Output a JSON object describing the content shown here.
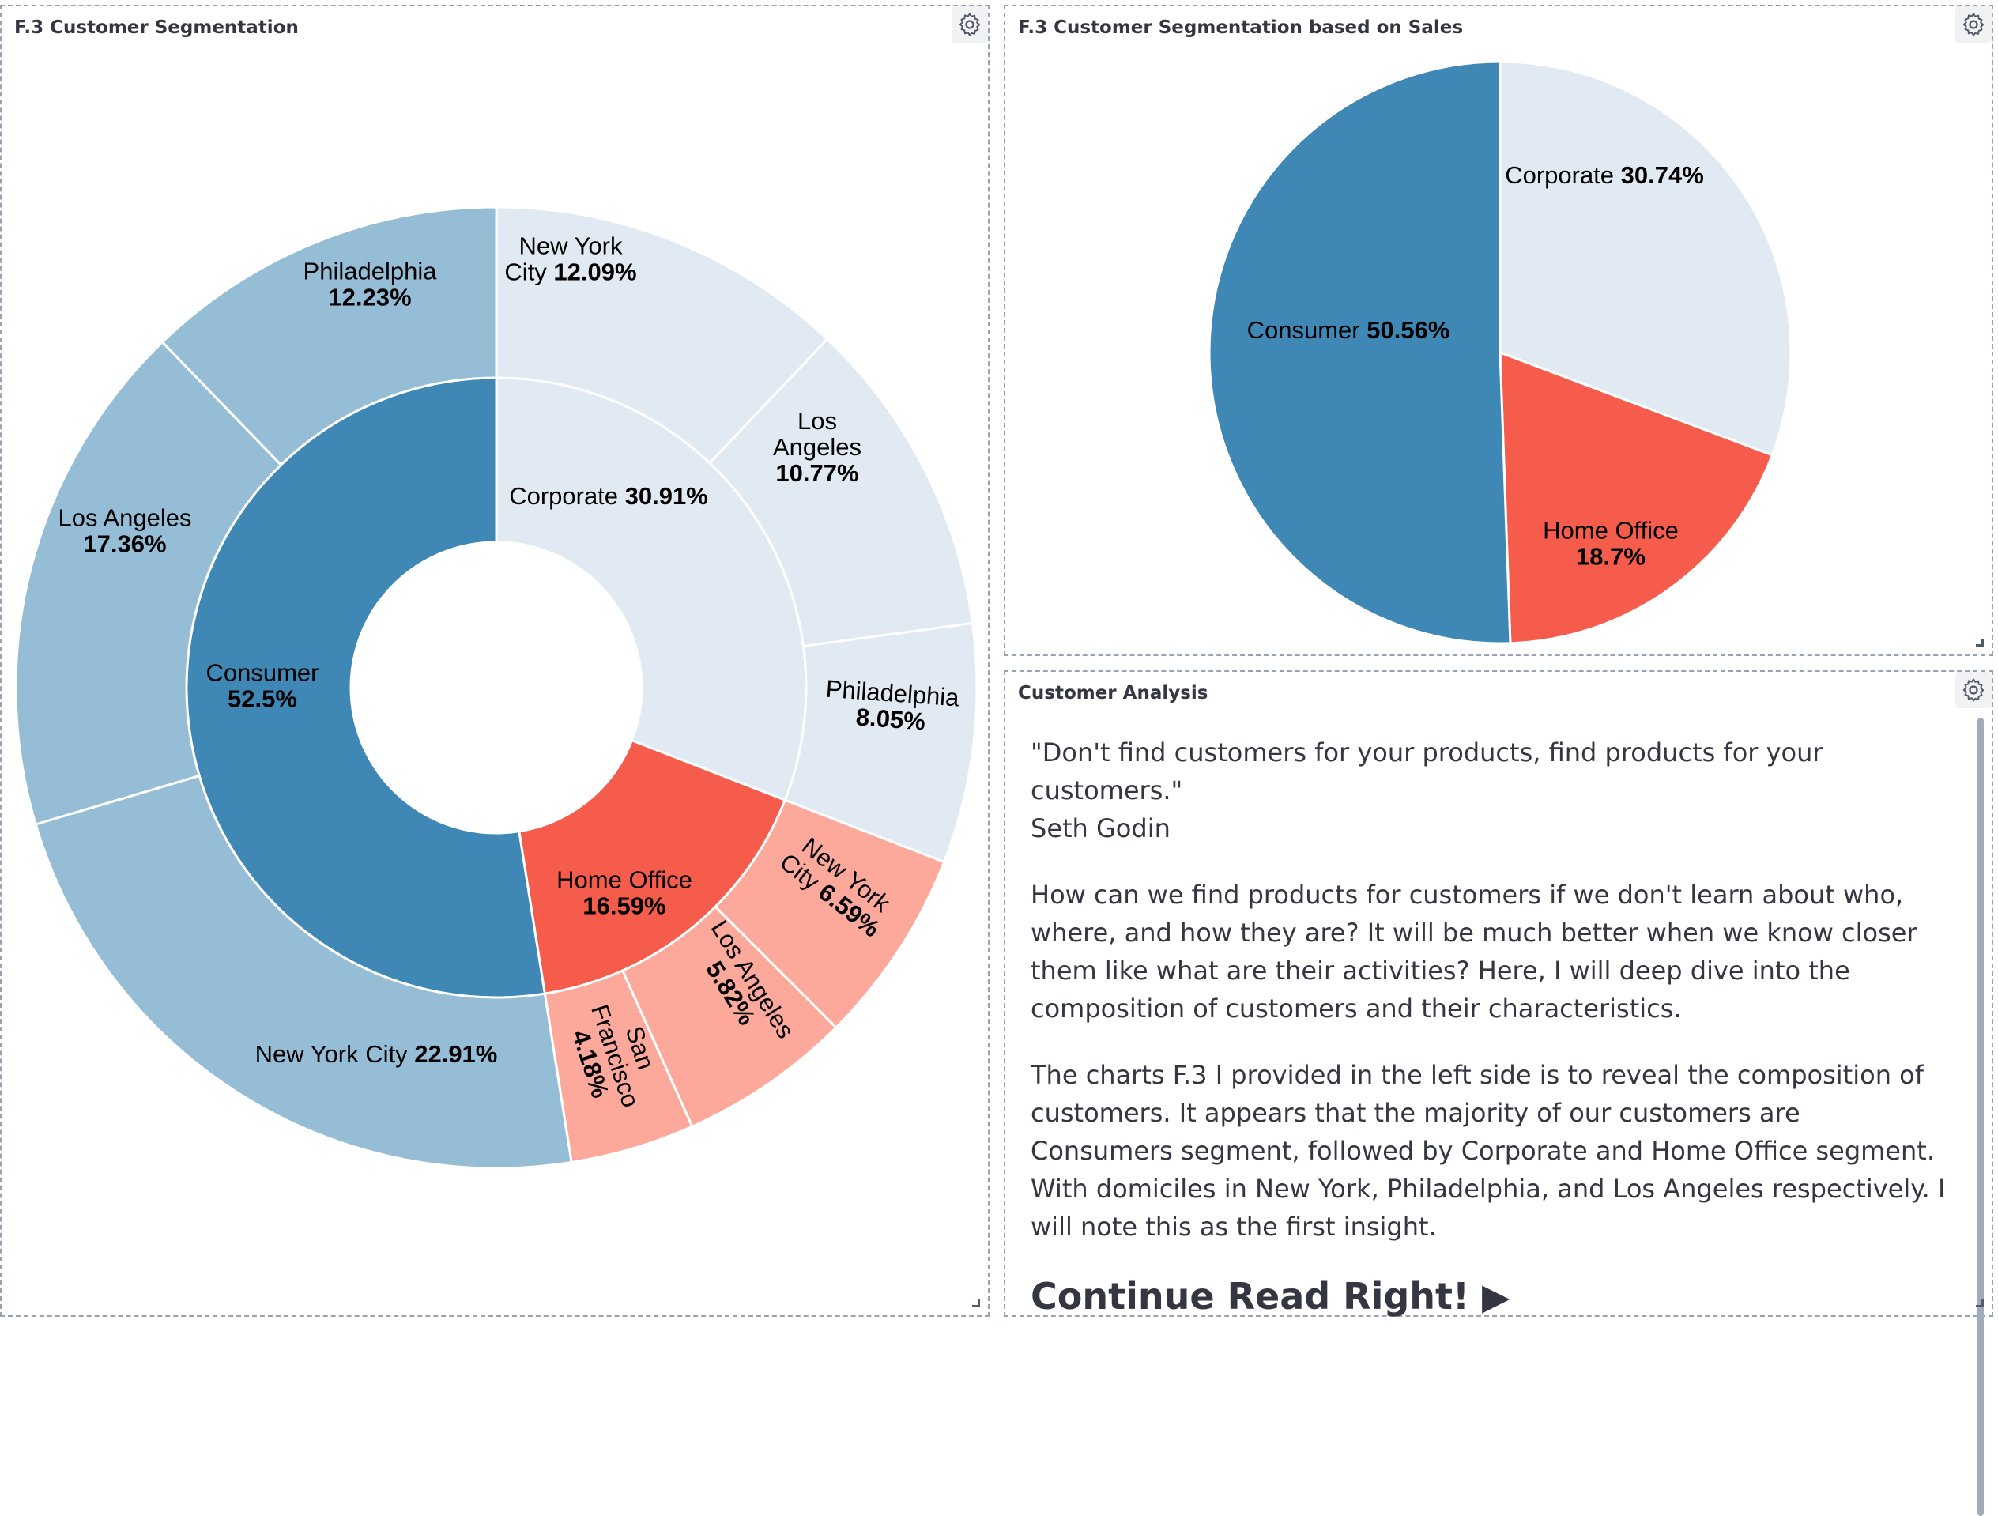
{
  "panels": {
    "sunburst": {
      "title": "F.3 Customer Segmentation"
    },
    "pie": {
      "title": "F.3 Customer Segmentation based on Sales"
    },
    "analysis": {
      "title": "Customer Analysis",
      "quote_line1": "\"Don't find customers for your products, find products for your customers.\"",
      "quote_line2": "Seth Godin",
      "paragraph2": "How can we find products for customers if we don't learn about who, where, and how they are? It will be much better when we know closer them like what are their activities? Here, I will deep dive into the composition of customers and their characteristics.",
      "paragraph3": "The charts F.3 I provided in the left side is to reveal the composition of customers. It appears that the majority of our customers are Consumers segment, followed by Corporate and Home Office segment. With domiciles in New York, Philadelphia, and Los Angeles respectively. I will note this as the first insight.",
      "cta": "Continue Read Right! ▶"
    }
  },
  "icons": {
    "settings": "gear-icon",
    "resize": "resize-handle-icon"
  },
  "chart_data": [
    {
      "type": "pie",
      "variant": "sunburst",
      "title": "F.3 Customer Segmentation",
      "inner": [
        {
          "name": "Corporate",
          "label": "30.91%",
          "value": 30.91,
          "color": "#e1e9f2"
        },
        {
          "name": "Home Office",
          "label": "16.59%",
          "value": 16.59,
          "color": "#f65c4c"
        },
        {
          "name": "Consumer",
          "label": "52.5%",
          "value": 52.5,
          "color": "#3f88b5"
        }
      ],
      "outer": [
        {
          "parent": "Corporate",
          "name": "New York City",
          "label": "12.09%",
          "value": 12.09,
          "color": "#e1e9f2"
        },
        {
          "parent": "Corporate",
          "name": "Los Angeles",
          "label": "10.77%",
          "value": 10.77,
          "color": "#e1e9f2"
        },
        {
          "parent": "Corporate",
          "name": "Philadelphia",
          "label": "8.05%",
          "value": 8.05,
          "color": "#e1e9f2"
        },
        {
          "parent": "Home Office",
          "name": "New York City",
          "label": "6.59%",
          "value": 6.59,
          "color": "#fca99c"
        },
        {
          "parent": "Home Office",
          "name": "Los Angeles",
          "label": "5.82%",
          "value": 5.82,
          "color": "#fca99c"
        },
        {
          "parent": "Home Office",
          "name": "San Francisco",
          "label": "4.18%",
          "value": 4.18,
          "color": "#fca99c"
        },
        {
          "parent": "Consumer",
          "name": "New York City",
          "label": "22.91%",
          "value": 22.91,
          "color": "#96bdd6"
        },
        {
          "parent": "Consumer",
          "name": "Los Angeles",
          "label": "17.36%",
          "value": 17.36,
          "color": "#96bdd6"
        },
        {
          "parent": "Consumer",
          "name": "Philadelphia",
          "label": "12.23%",
          "value": 12.23,
          "color": "#96bdd6"
        }
      ]
    },
    {
      "type": "pie",
      "title": "F.3 Customer Segmentation based on Sales",
      "slices": [
        {
          "name": "Corporate",
          "label": "30.74%",
          "value": 30.74,
          "color": "#e1e9f2"
        },
        {
          "name": "Home Office",
          "label": "18.7%",
          "value": 18.7,
          "color": "#f65c4c"
        },
        {
          "name": "Consumer",
          "label": "50.56%",
          "value": 50.56,
          "color": "#3f88b5"
        }
      ]
    }
  ]
}
